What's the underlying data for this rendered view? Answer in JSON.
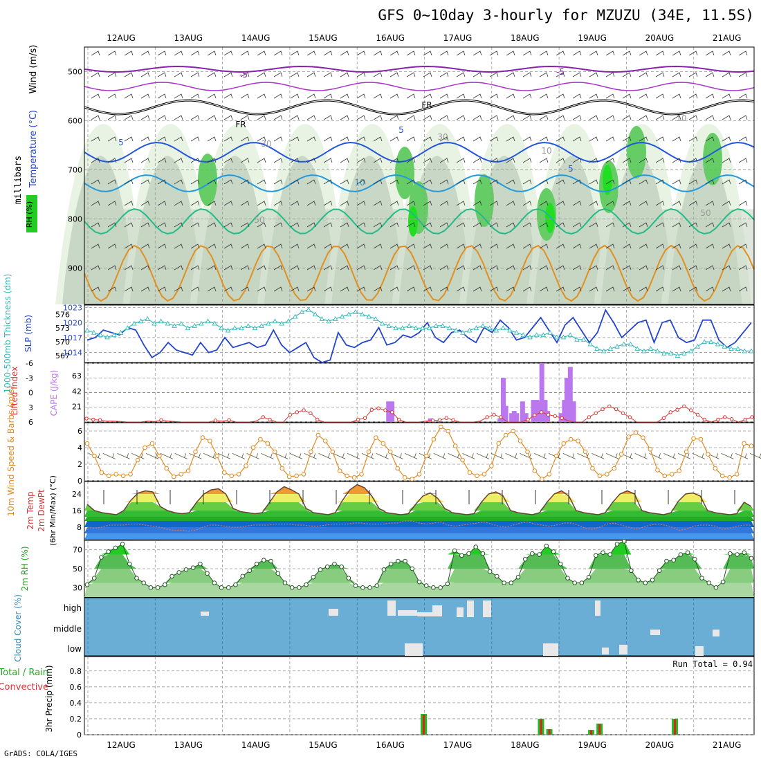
{
  "title": "GFS 0~10day 3-hourly for MZUZU (34E, 11.5S)",
  "credit": "GrADS: COLA/IGES",
  "colors": {
    "rh": "#22cc22",
    "temp": "#2255dd",
    "slp": "#2244cc",
    "thick": "#33bbbb",
    "cape": "#bb77ee",
    "li": "#dd3333",
    "wind": "#e08a20",
    "rhline": "#22aa22",
    "cloud": "#6aaed6"
  },
  "chart_data": [
    {
      "type": "heatmap",
      "name": "cross-section",
      "ylabel": "millibars",
      "yticks": [
        500,
        600,
        700,
        800,
        900
      ],
      "ylim": [
        1000,
        450
      ],
      "legend_labels": [
        "RH (%)",
        "Temperature (°C)",
        "Wind (m/s)"
      ],
      "contour_labels": [
        "-5",
        "-5",
        "FR",
        "FR",
        "5",
        "5",
        "5",
        "10",
        "30",
        "30",
        "50",
        "50",
        "10",
        "10"
      ],
      "dates": [
        "12AUG",
        "13AUG",
        "14AUG",
        "15AUG",
        "16AUG",
        "17AUG",
        "18AUG",
        "19AUG",
        "20AUG",
        "21AUG"
      ]
    },
    {
      "type": "line",
      "name": "slp-thickness",
      "ylabel_left": "1000-500mb Thickness (dm)",
      "ylabel_right": "SLP (mb)",
      "left_ticks": [
        567,
        570,
        573,
        576
      ],
      "right_ticks": [
        1014,
        1017,
        1020,
        1023
      ],
      "series": [
        {
          "name": "SLP (mb)",
          "values": [
            1016.5,
            1017,
            1018.5,
            1018,
            1017.5,
            1019,
            1018.5,
            1015.5,
            1013,
            1014,
            1016,
            1014.5,
            1014,
            1013.5,
            1016,
            1014,
            1014.5,
            1017,
            1015,
            1015.5,
            1016,
            1015,
            1015.5,
            1018.5,
            1015.5,
            1014,
            1015,
            1016,
            1013,
            1012,
            1012.5,
            1018,
            1015.5,
            1015,
            1016,
            1016.5,
            1019,
            1015.5,
            1016,
            1017.5,
            1017,
            1018,
            1020,
            1017,
            1016,
            1018,
            1018.5,
            1017,
            1016,
            1019,
            1018,
            1020.5,
            1019,
            1016.5,
            1017,
            1019,
            1021,
            1018.5,
            1016,
            1019.5,
            1021,
            1018.5,
            1016,
            1018,
            1022.5,
            1020,
            1017,
            1018.5,
            1020,
            1020.5,
            1016,
            1020,
            1020.5,
            1017,
            1016,
            1016.5,
            1020.5,
            1020.5,
            1016.5,
            1015,
            1016,
            1018,
            1020
          ]
        },
        {
          "name": "1000-500mb Thickness (dm)",
          "values": [
            572.5,
            572,
            571.5,
            571,
            571.5,
            572,
            573,
            574,
            574.5,
            575,
            574,
            574.5,
            574,
            573.5,
            574,
            573,
            573.5,
            574,
            574.5,
            574,
            573,
            572.5,
            573,
            573,
            573.5,
            573,
            573.5,
            574,
            574.5,
            574,
            574.5,
            575.5,
            576.5,
            577,
            576,
            575,
            574.5,
            575,
            575.5,
            576,
            576.5,
            576,
            575.5,
            575,
            574,
            573.5,
            573,
            573,
            573.5,
            573,
            573,
            573,
            573.5,
            573.5,
            573,
            572.5,
            572,
            572.5,
            573,
            573.5,
            573,
            572.5,
            573,
            572.5,
            572,
            571.5,
            571,
            571.5,
            571.5,
            572,
            571,
            571,
            571.5,
            570.5,
            570.5,
            569.5,
            568.5,
            568,
            568.5,
            569,
            569.5,
            569.5,
            568.5,
            568,
            568.5,
            568,
            567.5,
            567.5,
            567,
            567.5,
            568,
            569,
            570,
            570,
            569.5,
            569,
            568.5,
            568.5,
            568,
            568
          ]
        }
      ]
    },
    {
      "type": "bar",
      "name": "cape-li",
      "ylabel_left": "Lifted Index",
      "ylabel_right": "CAPE (J/kg)",
      "left_ticks": [
        "-6",
        "-3",
        "0",
        "3",
        "6"
      ],
      "right_ticks": [
        "21",
        "42",
        "63"
      ],
      "cape_values": [
        0,
        0,
        0,
        0,
        0,
        0,
        0,
        0,
        0,
        0,
        0,
        0,
        0,
        0,
        0,
        0,
        0,
        0,
        0,
        0,
        0,
        0,
        0,
        0,
        0,
        0,
        0,
        0,
        0,
        0,
        0,
        0,
        0,
        0,
        0,
        0,
        0,
        0,
        0,
        0,
        0,
        0,
        0,
        0,
        0,
        0,
        0,
        0,
        0,
        0,
        0,
        0,
        0,
        0,
        0,
        0,
        0,
        0,
        0,
        0,
        0,
        0,
        0,
        0,
        0,
        0,
        0,
        0,
        0,
        0,
        0,
        0,
        0,
        0,
        0,
        0,
        0,
        0,
        0,
        0
      ],
      "cape_bars": [
        [
          36.3,
          28
        ],
        [
          36.7,
          28
        ],
        [
          41.3,
          5
        ],
        [
          49.6,
          5
        ],
        [
          50.0,
          60
        ],
        [
          50.3,
          22
        ],
        [
          51.0,
          12
        ],
        [
          51.3,
          15
        ],
        [
          51.6,
          12
        ],
        [
          52.3,
          28
        ],
        [
          52.7,
          12
        ],
        [
          53.6,
          30
        ],
        [
          54.0,
          30
        ],
        [
          54.3,
          28
        ],
        [
          54.6,
          80
        ],
        [
          55.0,
          30
        ],
        [
          55.3,
          15
        ],
        [
          56.9,
          12
        ],
        [
          57.3,
          30
        ],
        [
          57.6,
          60
        ],
        [
          58.0,
          75
        ],
        [
          58.4,
          28
        ]
      ],
      "li_values": [
        5.3,
        5.5,
        5.6,
        5.8,
        5.8,
        5.9,
        6,
        6,
        6,
        5.8,
        5.9,
        5.6,
        5.8,
        5.9,
        6,
        6,
        6,
        6,
        6,
        5.7,
        5.8,
        5.6,
        6,
        6,
        6,
        5.8,
        5,
        5.5,
        6,
        6,
        4.5,
        4,
        3.6,
        4.2,
        5.5,
        6,
        6,
        6,
        6,
        6,
        5.5,
        5.2,
        3.5,
        3.2,
        3.6,
        4,
        5.5,
        6,
        6,
        6,
        5.8,
        5.7,
        5.6,
        5.2,
        5.6,
        6,
        6,
        6,
        5.8,
        5,
        4.5,
        5,
        6,
        6,
        6,
        5.5,
        4.6,
        4,
        4.5,
        4.8,
        5.2,
        5.8,
        6,
        6,
        5,
        4.2,
        3.4,
        2.8,
        3.4,
        4.2,
        5,
        6,
        6,
        6,
        6,
        5.2,
        4,
        3.5,
        2.8,
        3.6,
        4.5,
        5.5,
        6,
        5.5,
        5,
        5.4,
        6,
        5.5,
        5
      ]
    },
    {
      "type": "line",
      "name": "wind",
      "ylabel": "10m Wind Speed & Barbs (m/s)",
      "yticks": [
        0,
        2,
        4,
        6
      ],
      "ylim": [
        0,
        7
      ],
      "values": [
        4.5,
        3,
        1,
        0.6,
        0.8,
        0.6,
        0.8,
        2.5,
        4,
        4.5,
        3,
        1.5,
        0.5,
        0.8,
        1.2,
        3.5,
        5.2,
        4.8,
        3,
        1,
        0.6,
        0.8,
        1.8,
        4,
        5,
        4.5,
        3.5,
        1.5,
        0.5,
        0.6,
        0.8,
        3.5,
        5.5,
        4.8,
        3.5,
        1.2,
        0.6,
        0.4,
        0.8,
        3.5,
        5.2,
        4.5,
        3.5,
        1.5,
        0.4,
        0.2,
        0.8,
        3,
        5,
        6.5,
        6,
        4.2,
        2.5,
        1,
        0.6,
        0.8,
        1.8,
        4.5,
        5.5,
        6,
        4.8,
        3.5,
        1.2,
        0.2,
        0.8,
        3,
        4.5,
        5,
        4.8,
        3.5,
        1.5,
        0.6,
        0.8,
        1.5,
        3.2,
        5.3,
        5.8,
        5.2,
        3.8,
        1.3,
        0.6,
        0.8,
        1.2,
        3.5,
        5.1,
        5,
        3.2,
        1.5,
        0.6,
        0.4,
        0.8,
        4.5,
        4.2
      ]
    },
    {
      "type": "area",
      "name": "temp-dewpoint",
      "ylabel": "2m Temp 2m DewPt (6hr Min/Max) (°C)",
      "yticks": [
        8,
        16,
        24
      ],
      "ylim": [
        2,
        30
      ],
      "temp": [
        19,
        16,
        15,
        14.5,
        14,
        16,
        21,
        24.5,
        25.5,
        25,
        18,
        16,
        15,
        14.5,
        15,
        20,
        24,
        26,
        26.5,
        24,
        17,
        15.5,
        15,
        14.5,
        15,
        20,
        25,
        27.5,
        26,
        24,
        17,
        15,
        14.5,
        14,
        15,
        21,
        26,
        28.5,
        27,
        23,
        17,
        15,
        14.5,
        14,
        14.5,
        19,
        23,
        24.5,
        22,
        17,
        15,
        14.5,
        14,
        14.5,
        20,
        24,
        25,
        23,
        16,
        15,
        14.5,
        14,
        15,
        20,
        24,
        25.5,
        23,
        16,
        15,
        14.5,
        14,
        15,
        20,
        24,
        25.5,
        24,
        16,
        15,
        14.5,
        14,
        15,
        20.5,
        24,
        24.5,
        23,
        16,
        15,
        14.5,
        14,
        14.5,
        20,
        18
      ],
      "dewpoint": [
        8,
        7.5,
        8,
        9,
        9,
        9,
        9.5,
        9.5,
        9,
        8.5,
        8,
        7,
        6.5,
        6.5,
        6,
        6.5,
        8,
        9,
        9,
        8.5,
        8,
        8,
        8.5,
        9,
        9,
        9,
        9.5,
        9.5,
        9.5,
        9,
        9,
        8.5,
        8.5,
        9,
        9.5,
        9.5,
        9.5,
        10,
        10,
        9.5,
        9.5,
        9.5,
        10,
        10,
        11,
        11,
        10,
        9.5,
        10,
        10.5,
        9,
        8.5,
        9,
        9.5,
        10,
        10.5,
        9.5,
        8.5,
        8,
        9,
        10,
        10.5,
        9.5,
        9,
        8.5,
        9,
        10,
        10,
        9,
        7.5,
        7,
        8,
        9.5,
        10,
        9,
        8,
        7,
        8,
        9,
        9.5,
        9,
        8,
        6.5,
        7,
        8.5,
        9,
        9,
        8.5,
        7,
        7.5,
        8.5,
        9,
        9
      ]
    },
    {
      "type": "area",
      "name": "rh",
      "ylabel": "2m RH (%)",
      "yticks": [
        30,
        50,
        70
      ],
      "ylim": [
        20,
        80
      ],
      "values": [
        33,
        40,
        62,
        68,
        72,
        76,
        55,
        40,
        35,
        30,
        30,
        33,
        42,
        46,
        49,
        51,
        55,
        45,
        35,
        30,
        30,
        33,
        42,
        48,
        55,
        59,
        58,
        45,
        35,
        30,
        30,
        33,
        41,
        49,
        52,
        55,
        52,
        40,
        32,
        30,
        30,
        32,
        49,
        55,
        58,
        58,
        50,
        36,
        32,
        30,
        30,
        34,
        69,
        64,
        66,
        73,
        66,
        47,
        42,
        35,
        35,
        41,
        60,
        66,
        65,
        74,
        68,
        55,
        40,
        35,
        35,
        41,
        64,
        67,
        65,
        76,
        79,
        48,
        38,
        35,
        38,
        48,
        58,
        59,
        65,
        67,
        60,
        40,
        35,
        30,
        36,
        66,
        65,
        67,
        61
      ]
    },
    {
      "type": "bar",
      "name": "cloud-cover",
      "ylabel": "Cloud Cover (%)",
      "levels": [
        "high",
        "middle",
        "low"
      ]
    },
    {
      "type": "bar",
      "name": "precip",
      "ylabel": "3hr Precip (mm)",
      "left_label": "Total / Rain",
      "left_label2": "Convective",
      "run_total_label": "Run Total =",
      "run_total": "0.94",
      "yticks": [
        "0",
        "0.2",
        "0.4",
        "0.6",
        "0.8"
      ],
      "ylim": [
        0,
        0.98
      ],
      "bars": [
        [
          40.5,
          0.26
        ],
        [
          54.5,
          0.2
        ],
        [
          55.5,
          0.07
        ],
        [
          60.5,
          0.06
        ],
        [
          61.5,
          0.14
        ],
        [
          70.5,
          0.2
        ]
      ]
    }
  ]
}
